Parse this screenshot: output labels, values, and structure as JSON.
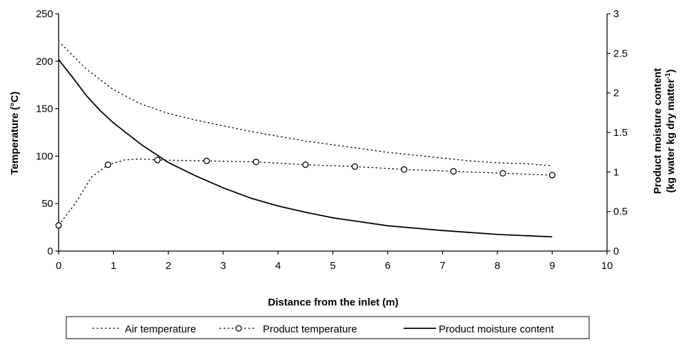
{
  "chart_data": {
    "type": "line",
    "title": "",
    "xlabel": "Distance from the inlet (m)",
    "ylabel": "Temperature (°C)",
    "y2label_line1": "Product moisture content",
    "y2label_line2": "(kg water kg dry matter",
    "y2label_sup": "-1",
    "y2label_close": ")",
    "xlim": [
      0,
      10
    ],
    "ylim": [
      0,
      250
    ],
    "y2lim": [
      0,
      3
    ],
    "xticks": [
      "0",
      "1",
      "2",
      "3",
      "4",
      "5",
      "6",
      "7",
      "8",
      "9",
      "10"
    ],
    "yticks": [
      "0",
      "50",
      "100",
      "150",
      "200",
      "250"
    ],
    "y2ticks": [
      "0",
      "0.5",
      "1",
      "1.5",
      "2",
      "2.5",
      "3"
    ],
    "grid": false,
    "legend_position": "bottom",
    "series": [
      {
        "name": "Air temperature",
        "axis": "left",
        "style": "dotted",
        "color": "#000000",
        "x": [
          0.05,
          0.5,
          1,
          1.5,
          2,
          2.5,
          3,
          3.5,
          4,
          4.5,
          5,
          5.5,
          6,
          6.5,
          7,
          7.5,
          8,
          8.5,
          9
        ],
        "y": [
          218,
          192,
          170,
          155,
          145,
          138,
          132,
          126,
          121,
          116,
          112,
          108,
          104,
          101,
          98,
          95,
          93,
          92,
          90
        ]
      },
      {
        "name": "Product temperature",
        "axis": "left",
        "style": "dotted-circle",
        "color": "#000000",
        "x": [
          0,
          0.3,
          0.6,
          0.9,
          1.2,
          1.5,
          1.8,
          2.7,
          3.6,
          4.5,
          5.4,
          6.3,
          7.2,
          8.1,
          9
        ],
        "y": [
          27,
          50,
          78,
          91,
          96,
          97,
          96,
          95,
          94,
          91,
          89,
          86,
          84,
          82,
          80
        ],
        "markers_x": [
          0,
          0.9,
          1.8,
          2.7,
          3.6,
          4.5,
          5.4,
          6.3,
          7.2,
          8.1,
          9
        ],
        "markers_y": [
          27,
          91,
          96,
          95,
          94,
          91,
          89,
          86,
          84,
          82,
          80
        ]
      },
      {
        "name": "Product moisture content",
        "axis": "right",
        "style": "solid",
        "color": "#000000",
        "x": [
          0,
          0.25,
          0.5,
          0.75,
          1,
          1.5,
          2,
          2.5,
          3,
          3.5,
          4,
          4.5,
          5,
          6,
          7,
          8,
          9
        ],
        "y": [
          2.42,
          2.2,
          1.97,
          1.78,
          1.62,
          1.35,
          1.12,
          0.95,
          0.8,
          0.67,
          0.57,
          0.49,
          0.42,
          0.32,
          0.26,
          0.21,
          0.18
        ]
      }
    ]
  }
}
